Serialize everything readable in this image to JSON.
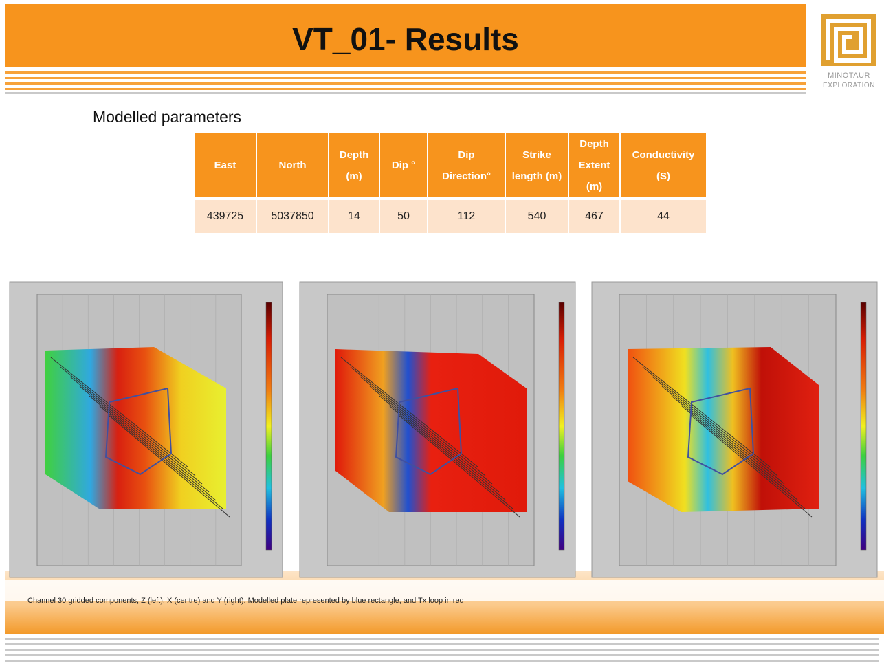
{
  "header": {
    "title": "VT_01- Results"
  },
  "logo": {
    "name": "MINOTAUR",
    "subtitle": "EXPLORATION"
  },
  "section_title": "Modelled parameters",
  "table": {
    "columns": [
      "East",
      "North",
      "Depth (m)",
      "Dip °",
      "Dip Direction°",
      "Strike length (m)",
      "Depth Extent (m)",
      "Conductivity (S)"
    ],
    "rows": [
      [
        439725,
        5037850,
        14,
        50,
        112,
        540,
        467,
        44
      ]
    ]
  },
  "caption": "Channel 30 gridded components, Z (left), X (centre) and Y (right).  Modelled plate represented by blue rectangle, and Tx loop in red"
}
